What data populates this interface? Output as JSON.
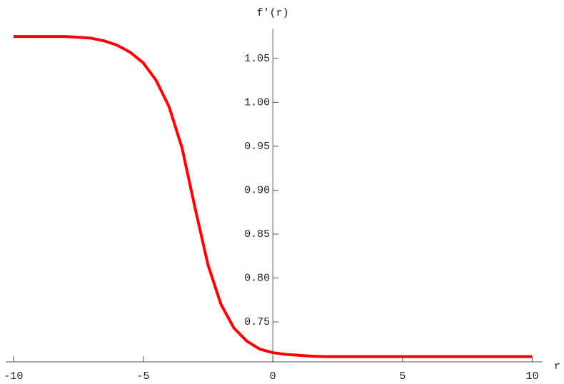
{
  "chart_data": {
    "type": "line",
    "x_label": "r",
    "y_label": "f′(r)",
    "x": [
      -10,
      -9.5,
      -9,
      -8.5,
      -8,
      -7.5,
      -7,
      -6.5,
      -6,
      -5.5,
      -5,
      -4.5,
      -4,
      -3.5,
      -3,
      -2.5,
      -2,
      -1.5,
      -1,
      -0.5,
      0,
      0.5,
      1,
      1.5,
      2,
      2.5,
      3,
      4,
      5,
      6,
      7,
      8,
      9,
      10
    ],
    "series": [
      {
        "color": "#ff0000",
        "values": [
          1.075,
          1.075,
          1.075,
          1.075,
          1.075,
          1.074,
          1.073,
          1.07,
          1.065,
          1.057,
          1.045,
          1.025,
          0.995,
          0.948,
          0.88,
          0.815,
          0.77,
          0.743,
          0.728,
          0.719,
          0.715,
          0.713,
          0.712,
          0.711,
          0.7105,
          0.7105,
          0.7105,
          0.7105,
          0.7105,
          0.7105,
          0.7105,
          0.7105,
          0.7105,
          0.7105
        ]
      }
    ],
    "xlim": [
      -10.3,
      10.4
    ],
    "ylim": [
      0.7045,
      1.084
    ],
    "xticks": [
      -10,
      -5,
      0,
      5,
      10
    ],
    "yticks": [
      0.75,
      {
        "value": 0.8,
        "label": "0.80"
      },
      0.85,
      {
        "value": 0.9,
        "label": "0.90"
      },
      0.95,
      {
        "value": 1.0,
        "label": "1.00"
      },
      1.05
    ]
  }
}
